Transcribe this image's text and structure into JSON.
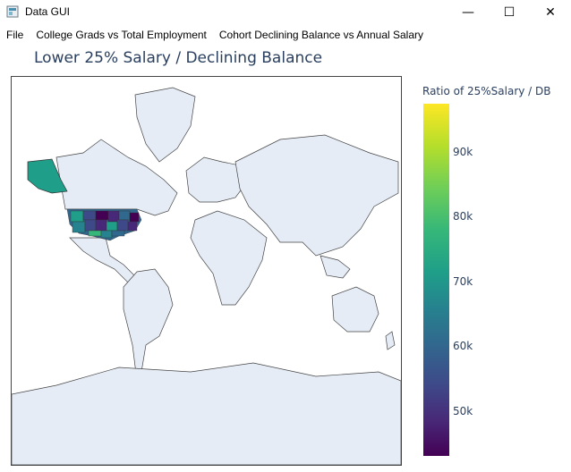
{
  "window": {
    "title": "Data GUI",
    "controls": {
      "minimize": "—",
      "maximize": "☐",
      "close": "✕"
    }
  },
  "menu": [
    "File",
    "College Grads vs Total Employment",
    "Cohort Declining Balance vs Annual Salary"
  ],
  "chart": {
    "title": "Lower 25% Salary / Declining Balance",
    "colorbar_title": "Ratio of 25%Salary / DB",
    "colorscale": "viridis",
    "highlighted_regions": [
      "United States",
      "Alaska"
    ]
  },
  "chart_data": {
    "type": "heatmap",
    "title": "Lower 25% Salary / Declining Balance",
    "colorbar": {
      "title": "Ratio of 25%Salary / DB",
      "ticks": [
        "90k",
        "80k",
        "70k",
        "60k",
        "50k"
      ],
      "range": [
        43000,
        98000
      ]
    },
    "regions": [
      "United States",
      "Alaska"
    ]
  }
}
